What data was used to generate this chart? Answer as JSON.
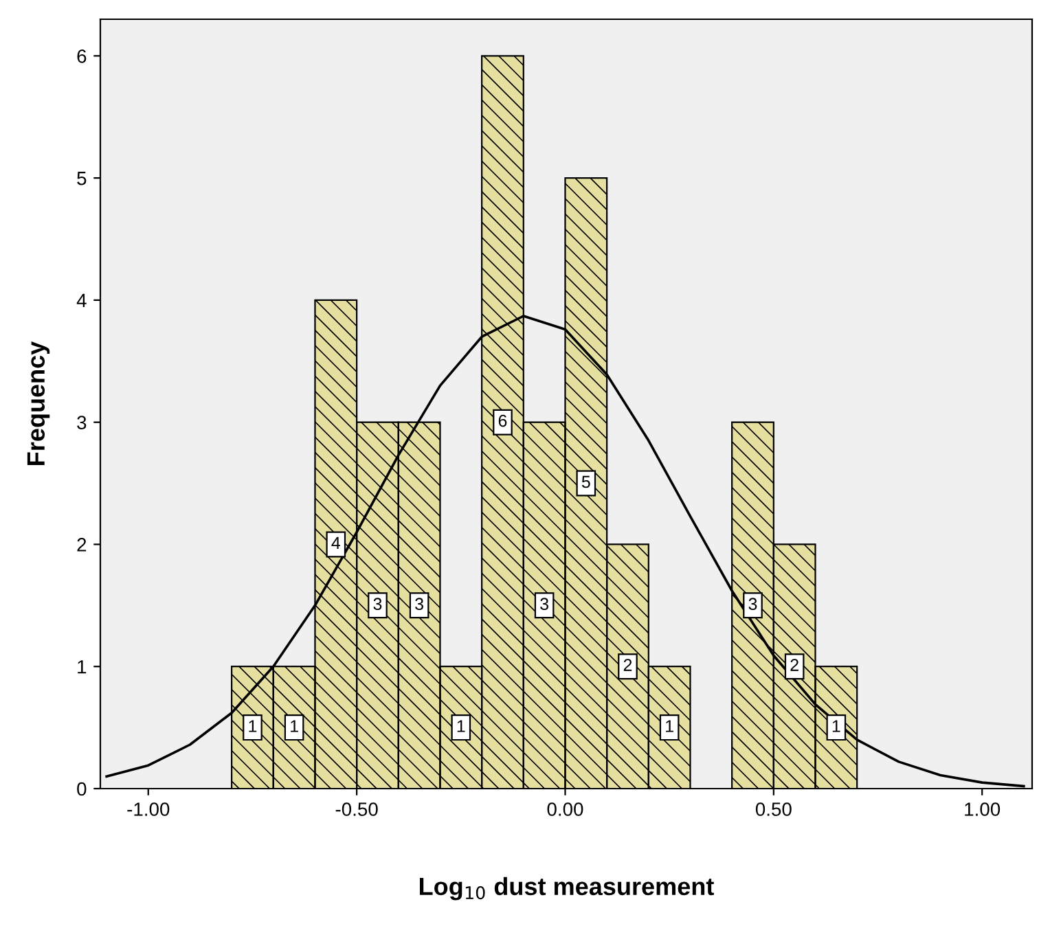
{
  "chart_data": {
    "type": "histogram",
    "xlabel": "Log$_{10}$ dust measurement",
    "ylabel": "Frequency",
    "bins": [
      -0.8,
      -0.7,
      -0.6,
      -0.5,
      -0.4,
      -0.3,
      -0.2,
      -0.1,
      0.0,
      0.1,
      0.2,
      0.3,
      0.4,
      0.5,
      0.6,
      0.7
    ],
    "series": [
      {
        "color": "#e6e0a0",
        "values": [
          1,
          1,
          4,
          3,
          3,
          1,
          6,
          3,
          5,
          2,
          1,
          0,
          3,
          2,
          1
        ],
        "value_labels": [
          "1",
          "1",
          "4",
          "3",
          "3",
          "1",
          "6",
          "3",
          "5",
          "2",
          "1",
          null,
          "3",
          "2",
          "1"
        ]
      },
      {
        "type": "line",
        "color": "#000000",
        "x": [
          -1.1,
          -1.0,
          -0.9,
          -0.8,
          -0.7,
          -0.6,
          -0.5,
          -0.4,
          -0.3,
          -0.2,
          -0.1,
          0.0,
          0.1,
          0.2,
          0.3,
          0.4,
          0.5,
          0.6,
          0.7,
          0.8,
          0.9,
          1.0,
          1.1
        ],
        "values": [
          0.1,
          0.19,
          0.36,
          0.62,
          1.0,
          1.5,
          2.1,
          2.73,
          3.3,
          3.7,
          3.87,
          3.76,
          3.39,
          2.85,
          2.23,
          1.62,
          1.09,
          0.69,
          0.4,
          0.22,
          0.11,
          0.05,
          0.02
        ]
      }
    ],
    "xlim": [
      -1.115,
      1.12
    ],
    "ylim": [
      0,
      6.3
    ],
    "xticks": [
      {
        "value": -1.0,
        "label": "-1.00"
      },
      {
        "value": -0.5,
        "label": "-0.50"
      },
      {
        "value": 0.0,
        "label": "0.00"
      },
      {
        "value": 0.5,
        "label": "0.50"
      },
      {
        "value": 1.0,
        "label": "1.00"
      }
    ],
    "yticks": [
      0,
      1,
      2,
      3,
      4,
      5,
      6
    ],
    "grid": false,
    "marker": "none",
    "line_style": "solid"
  }
}
